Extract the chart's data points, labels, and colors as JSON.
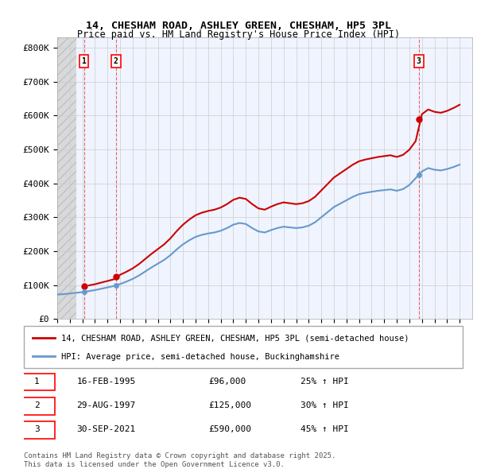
{
  "title_line1": "14, CHESHAM ROAD, ASHLEY GREEN, CHESHAM, HP5 3PL",
  "title_line2": "Price paid vs. HM Land Registry's House Price Index (HPI)",
  "ylabel_ticks": [
    "£0",
    "£100K",
    "£200K",
    "£300K",
    "£400K",
    "£500K",
    "£600K",
    "£700K",
    "£800K"
  ],
  "ytick_values": [
    0,
    100000,
    200000,
    300000,
    400000,
    500000,
    600000,
    700000,
    800000
  ],
  "ylim": [
    0,
    830000
  ],
  "xlim_start": 1993.0,
  "xlim_end": 2026.0,
  "hatch_end": 1994.5,
  "legend_line1": "14, CHESHAM ROAD, ASHLEY GREEN, CHESHAM, HP5 3PL (semi-detached house)",
  "legend_line2": "HPI: Average price, semi-detached house, Buckinghamshire",
  "footnote": "Contains HM Land Registry data © Crown copyright and database right 2025.\nThis data is licensed under the Open Government Licence v3.0.",
  "transactions": [
    {
      "num": 1,
      "date": "16-FEB-1995",
      "price": 96000,
      "year": 1995.12,
      "pct": "25% ↑ HPI"
    },
    {
      "num": 2,
      "date": "29-AUG-1997",
      "price": 125000,
      "year": 1997.66,
      "pct": "30% ↑ HPI"
    },
    {
      "num": 3,
      "date": "30-SEP-2021",
      "price": 590000,
      "year": 2021.75,
      "pct": "45% ↑ HPI"
    }
  ],
  "line_color_red": "#cc0000",
  "line_color_blue": "#6699cc",
  "hatch_color": "#cccccc",
  "grid_color": "#cccccc",
  "bg_color": "#f0f4ff",
  "hatch_bg": "#e8e8e8",
  "table_header_bg": "#ffffff",
  "red_dashed_color": "#dd4444",
  "marker_color_red": "#cc0000",
  "marker_color_blue": "#6699cc"
}
